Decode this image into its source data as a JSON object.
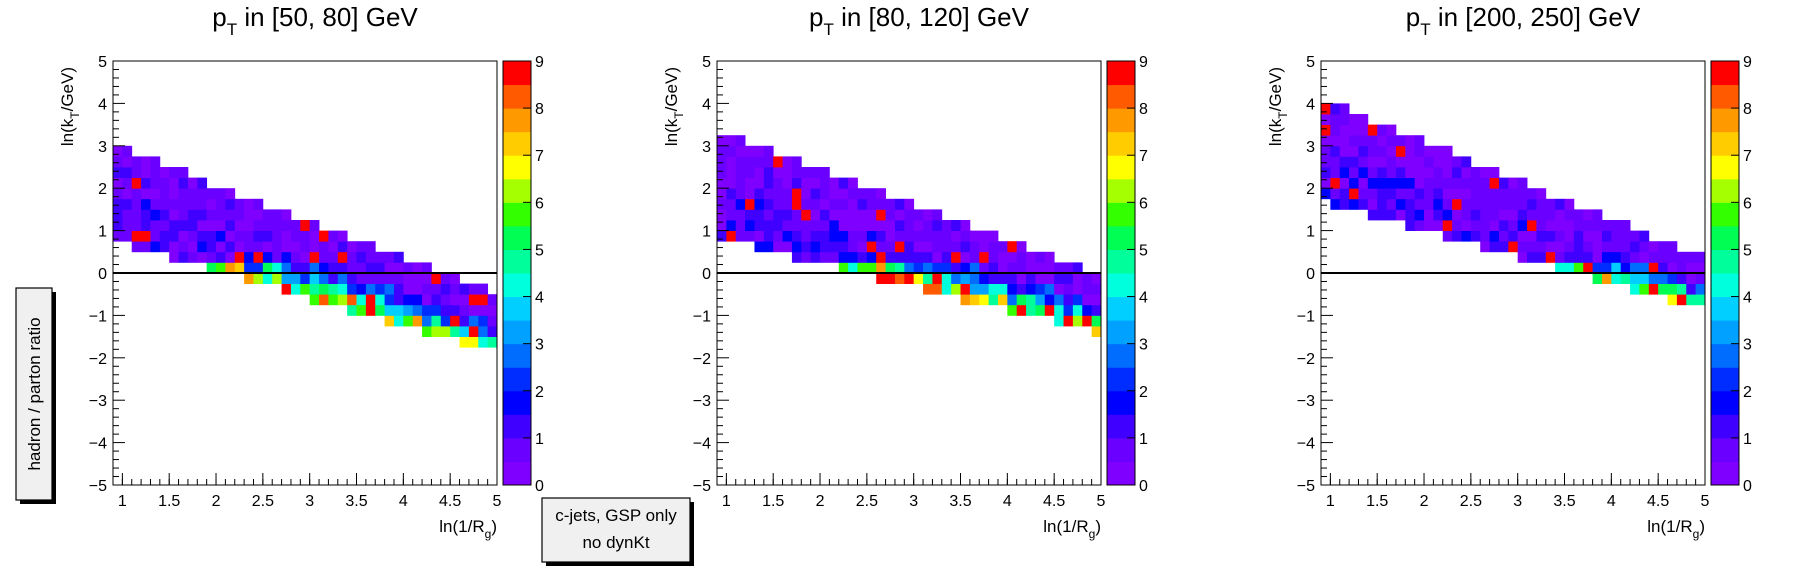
{
  "side_label": "hadron / parton ratio",
  "note_box": {
    "line1": "c-jets, GSP only",
    "line2": "no dynKt"
  },
  "colorscale": {
    "min": 0,
    "max": 9,
    "ticks": [
      0,
      1,
      2,
      3,
      4,
      5,
      6,
      7,
      8,
      9
    ],
    "colors": [
      "#7f00ff",
      "#6a00ff",
      "#3f00ff",
      "#0000ff",
      "#002dff",
      "#006dff",
      "#00a1ff",
      "#00cfff",
      "#00ffdc",
      "#00ff9b",
      "#00ff52",
      "#33ff00",
      "#a6ff00",
      "#ffff00",
      "#ffcc00",
      "#ff9900",
      "#ff5a00",
      "#ff0000"
    ]
  },
  "chart_data": [
    {
      "type": "heatmap",
      "title_main": "p",
      "title_sub": "T",
      "title_rest": " in [50, 80] GeV",
      "xlabel_main": "ln(1/R",
      "xlabel_sub": "g",
      "xlabel_end": ")",
      "ylabel_main": "ln(k",
      "ylabel_sub": "T",
      "ylabel_end": "/GeV)",
      "xlim": [
        0.9,
        5.0
      ],
      "ylim": [
        -5,
        5
      ],
      "zlim": [
        0,
        9
      ],
      "xticks": [
        "1",
        "1.5",
        "2",
        "2.5",
        "3",
        "3.5",
        "4",
        "4.5",
        "5"
      ],
      "yticks": [
        "−5",
        "−4",
        "−3",
        "−2",
        "−1",
        "0",
        "1",
        "2",
        "3",
        "4",
        "5"
      ],
      "reference_line_y": 0,
      "band": {
        "top_at_x0": 2.9,
        "top_slope": -0.86,
        "width_start": 2.0,
        "width_end": 1.15,
        "x_start": 0.9,
        "x_end": 5.0
      }
    },
    {
      "type": "heatmap",
      "title_main": "p",
      "title_sub": "T",
      "title_rest": " in [80, 120] GeV",
      "xlabel_main": "ln(1/R",
      "xlabel_sub": "g",
      "xlabel_end": ")",
      "ylabel_main": "ln(k",
      "ylabel_sub": "T",
      "ylabel_end": "/GeV)",
      "xlim": [
        0.9,
        5.0
      ],
      "ylim": [
        -5,
        5
      ],
      "zlim": [
        0,
        9
      ],
      "xticks": [
        "1",
        "1.5",
        "2",
        "2.5",
        "3",
        "3.5",
        "4",
        "4.5",
        "5"
      ],
      "yticks": [
        "−5",
        "−4",
        "−3",
        "−2",
        "−1",
        "0",
        "1",
        "2",
        "3",
        "4",
        "5"
      ],
      "reference_line_y": 0,
      "band": {
        "top_at_x0": 3.25,
        "top_slope": -0.84,
        "width_start": 2.3,
        "width_end": 1.1,
        "x_start": 0.9,
        "x_end": 5.0
      }
    },
    {
      "type": "heatmap",
      "title_main": "p",
      "title_sub": "T",
      "title_rest": " in [200, 250] GeV",
      "xlabel_main": "ln(1/R",
      "xlabel_sub": "g",
      "xlabel_end": ")",
      "ylabel_main": "ln(k",
      "ylabel_sub": "T",
      "ylabel_end": "/GeV)",
      "xlim": [
        0.9,
        5.0
      ],
      "ylim": [
        -5,
        5
      ],
      "zlim": [
        0,
        9
      ],
      "xticks": [
        "1",
        "1.5",
        "2",
        "2.5",
        "3",
        "3.5",
        "4",
        "4.5",
        "5"
      ],
      "yticks": [
        "−5",
        "−4",
        "−3",
        "−2",
        "−1",
        "0",
        "1",
        "2",
        "3",
        "4",
        "5"
      ],
      "reference_line_y": 0,
      "band": {
        "top_at_x0": 4.0,
        "top_slope": -0.92,
        "width_start": 2.2,
        "width_end": 1.0,
        "x_start": 0.9,
        "x_end": 5.0
      }
    }
  ]
}
